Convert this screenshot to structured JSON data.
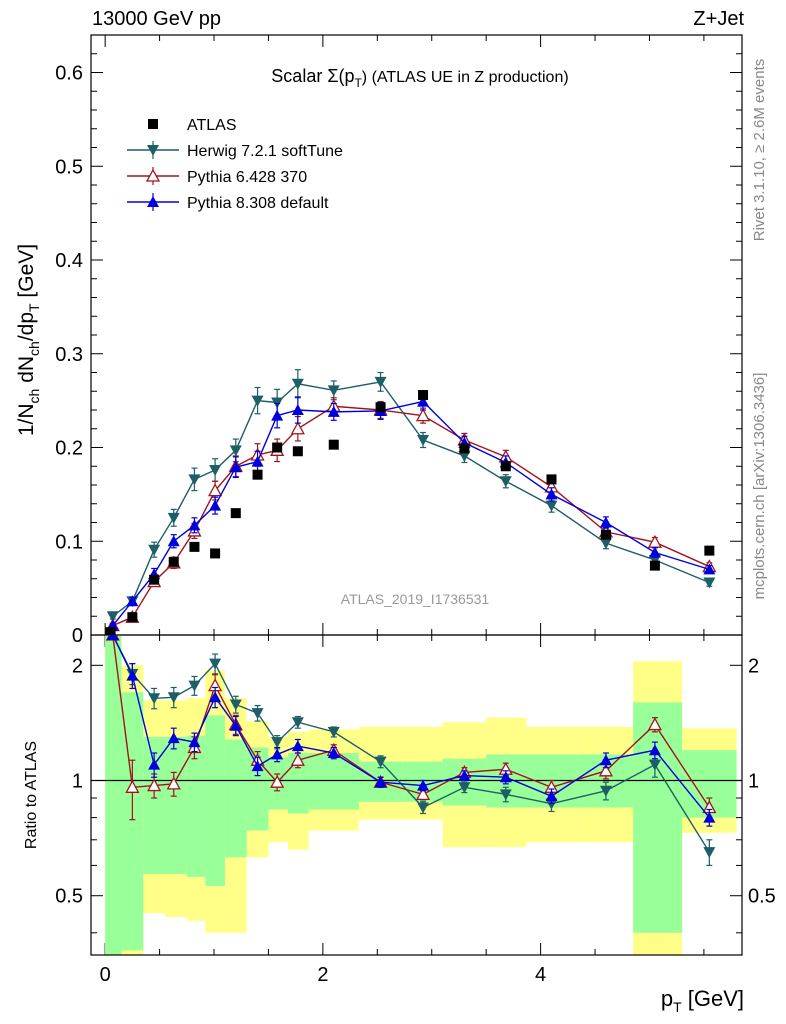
{
  "header": {
    "left": "13000 GeV pp",
    "right": "Z+Jet"
  },
  "side_labels": {
    "top": "Rivet 3.1.10, ≥ 2.6M events",
    "bottom": "mcplots.cern.ch [arXiv:1306.3436]"
  },
  "plot_title": {
    "prefix": "Scalar Σ(p",
    "sub": "T",
    "suffix": ") (ATLAS UE in Z production)"
  },
  "analysis_id": "ATLAS_2019_I1736531",
  "axes": {
    "ylabel_main": "1/N_ch dN_ch/dp_T [GeV]",
    "ylabel_ratio": "Ratio to ATLAS",
    "xlabel": "p_T [GeV]",
    "x_ticks": [
      "0",
      "2",
      "4"
    ],
    "y_ticks_main": [
      "0",
      "0.1",
      "0.2",
      "0.3",
      "0.4",
      "0.5",
      "0.6"
    ],
    "y_ticks_ratio": [
      "0.5",
      "1",
      "2"
    ]
  },
  "legend": [
    {
      "label": "ATLAS",
      "color": "#000000",
      "marker": "square"
    },
    {
      "label": "Herwig 7.2.1 softTune",
      "color": "#1c5f66",
      "marker": "triangle-down"
    },
    {
      "label": "Pythia 6.428 370",
      "color": "#a0141e",
      "marker": "triangle-open"
    },
    {
      "label": "Pythia 8.308 default",
      "color": "#0000dd",
      "marker": "triangle-up"
    }
  ],
  "chart_data": [
    {
      "type": "scatter",
      "panel": "main",
      "xlabel": "p_T [GeV]",
      "ylabel": "1/N_ch dN_ch/dp_T [GeV]",
      "xlim": [
        -0.13,
        5.85
      ],
      "ylim": [
        0,
        0.64
      ],
      "series": [
        {
          "name": "ATLAS",
          "color": "#000000",
          "x": [
            0.05,
            0.25,
            0.45,
            0.63,
            0.82,
            1.01,
            1.2,
            1.4,
            1.58,
            1.77,
            2.1,
            2.53,
            2.92,
            3.3,
            3.68,
            4.1,
            4.6,
            5.05,
            5.55
          ],
          "y": [
            0.003,
            0.019,
            0.059,
            0.078,
            0.094,
            0.087,
            0.13,
            0.171,
            0.2,
            0.196,
            0.203,
            0.243,
            0.256,
            0.199,
            0.18,
            0.166,
            0.107,
            0.074,
            0.09
          ]
        },
        {
          "name": "Herwig 7.2.1 softTune",
          "color": "#1c5f66",
          "x": [
            0.07,
            0.25,
            0.45,
            0.63,
            0.82,
            1.01,
            1.2,
            1.4,
            1.58,
            1.77,
            2.1,
            2.53,
            2.92,
            3.3,
            3.68,
            4.1,
            4.6,
            5.05,
            5.55
          ],
          "y": [
            0.02,
            0.036,
            0.091,
            0.125,
            0.166,
            0.176,
            0.197,
            0.25,
            0.248,
            0.268,
            0.261,
            0.27,
            0.208,
            0.191,
            0.164,
            0.138,
            0.098,
            0.08,
            0.056
          ],
          "err": [
            0.003,
            0.004,
            0.008,
            0.009,
            0.012,
            0.012,
            0.012,
            0.014,
            0.014,
            0.015,
            0.01,
            0.01,
            0.008,
            0.007,
            0.007,
            0.007,
            0.006,
            0.006,
            0.004
          ]
        },
        {
          "name": "Pythia 6.428 370",
          "color": "#a0141e",
          "x": [
            0.07,
            0.25,
            0.45,
            0.63,
            0.82,
            1.01,
            1.2,
            1.4,
            1.58,
            1.77,
            2.1,
            2.53,
            2.92,
            3.3,
            3.68,
            4.1,
            4.6,
            5.05,
            5.55
          ],
          "y": [
            0.01,
            0.019,
            0.057,
            0.077,
            0.111,
            0.154,
            0.18,
            0.192,
            0.197,
            0.22,
            0.244,
            0.24,
            0.234,
            0.208,
            0.19,
            0.158,
            0.11,
            0.099,
            0.073
          ],
          "err": [
            0.002,
            0.003,
            0.005,
            0.006,
            0.008,
            0.01,
            0.011,
            0.012,
            0.012,
            0.013,
            0.009,
            0.009,
            0.008,
            0.007,
            0.007,
            0.007,
            0.006,
            0.005,
            0.004
          ]
        },
        {
          "name": "Pythia 8.308 default",
          "color": "#0000dd",
          "x": [
            0.07,
            0.25,
            0.45,
            0.63,
            0.82,
            1.01,
            1.2,
            1.4,
            1.58,
            1.77,
            2.1,
            2.53,
            2.92,
            3.3,
            3.68,
            4.1,
            4.6,
            5.05,
            5.55
          ],
          "y": [
            0.01,
            0.036,
            0.065,
            0.1,
            0.117,
            0.138,
            0.179,
            0.185,
            0.234,
            0.24,
            0.238,
            0.239,
            0.249,
            0.205,
            0.184,
            0.15,
            0.12,
            0.088,
            0.07
          ],
          "err": [
            0.002,
            0.004,
            0.006,
            0.007,
            0.008,
            0.009,
            0.011,
            0.011,
            0.013,
            0.014,
            0.009,
            0.009,
            0.009,
            0.007,
            0.007,
            0.007,
            0.006,
            0.005,
            0.004
          ]
        }
      ]
    },
    {
      "type": "scatter",
      "panel": "ratio",
      "ylabel": "Ratio to ATLAS",
      "yscale": "log",
      "xlim": [
        -0.13,
        5.85
      ],
      "ylim": [
        0.35,
        2.4
      ],
      "bands": {
        "bin_edges": [
          0,
          0.15,
          0.35,
          0.55,
          0.75,
          0.92,
          1.1,
          1.3,
          1.5,
          1.68,
          1.87,
          2.33,
          2.73,
          3.1,
          3.5,
          3.87,
          4.35,
          4.85,
          5.3,
          5.8
        ],
        "green_low": [
          0.35,
          0.36,
          0.57,
          0.57,
          0.56,
          0.53,
          0.63,
          0.74,
          0.84,
          0.82,
          0.84,
          0.88,
          0.88,
          0.86,
          0.85,
          0.85,
          0.85,
          0.4,
          0.8
        ],
        "green_high": [
          2.4,
          1.7,
          1.3,
          1.3,
          1.31,
          1.48,
          1.28,
          1.22,
          1.15,
          1.18,
          1.18,
          1.12,
          1.12,
          1.14,
          1.17,
          1.17,
          1.17,
          1.6,
          1.2
        ],
        "yellow_low": [
          0.35,
          0.35,
          0.45,
          0.44,
          0.43,
          0.4,
          0.4,
          0.63,
          0.69,
          0.66,
          0.74,
          0.79,
          0.79,
          0.67,
          0.67,
          0.69,
          0.69,
          0.35,
          0.73
        ],
        "yellow_high": [
          2.4,
          2.0,
          1.62,
          1.62,
          1.64,
          1.94,
          1.64,
          1.43,
          1.3,
          1.34,
          1.36,
          1.38,
          1.38,
          1.42,
          1.46,
          1.38,
          1.38,
          2.05,
          1.37
        ]
      },
      "series": [
        {
          "name": "Herwig 7.2.1 softTune",
          "color": "#1c5f66",
          "x": [
            0.07,
            0.25,
            0.45,
            0.63,
            0.82,
            1.01,
            1.2,
            1.4,
            1.58,
            1.77,
            2.1,
            2.53,
            2.92,
            3.3,
            3.68,
            4.1,
            4.6,
            5.05,
            5.55
          ],
          "y": [
            2.4,
            1.9,
            1.64,
            1.65,
            1.77,
            2.02,
            1.58,
            1.5,
            1.26,
            1.42,
            1.34,
            1.12,
            0.85,
            0.96,
            0.92,
            0.87,
            0.94,
            1.1,
            0.65
          ],
          "err": [
            0,
            0.12,
            0.1,
            0.1,
            0.1,
            0.12,
            0.08,
            0.07,
            0.05,
            0.05,
            0.04,
            0.04,
            0.03,
            0.03,
            0.04,
            0.04,
            0.05,
            0.08,
            0.05
          ]
        },
        {
          "name": "Pythia 6.428 370",
          "color": "#a0141e",
          "x": [
            0.07,
            0.25,
            0.45,
            0.63,
            0.82,
            1.01,
            1.2,
            1.4,
            1.58,
            1.77,
            2.1,
            2.53,
            2.92,
            3.3,
            3.68,
            4.1,
            4.6,
            5.05,
            5.55
          ],
          "y": [
            2.4,
            0.96,
            0.97,
            0.98,
            1.22,
            1.77,
            1.4,
            1.13,
            0.99,
            1.13,
            1.2,
            0.99,
            0.92,
            1.05,
            1.07,
            0.96,
            1.06,
            1.4,
            0.85
          ],
          "err": [
            0,
            0.17,
            0.07,
            0.07,
            0.08,
            0.12,
            0.08,
            0.06,
            0.05,
            0.05,
            0.04,
            0.03,
            0.03,
            0.03,
            0.04,
            0.04,
            0.05,
            0.06,
            0.05
          ]
        },
        {
          "name": "Pythia 8.308 default",
          "color": "#0000dd",
          "x": [
            0.07,
            0.25,
            0.45,
            0.63,
            0.82,
            1.01,
            1.2,
            1.4,
            1.58,
            1.77,
            2.1,
            2.53,
            2.92,
            3.3,
            3.68,
            4.1,
            4.6,
            5.05,
            5.55
          ],
          "y": [
            2.4,
            1.88,
            1.1,
            1.29,
            1.26,
            1.65,
            1.39,
            1.09,
            1.17,
            1.23,
            1.18,
            0.99,
            0.97,
            1.03,
            1.02,
            0.91,
            1.13,
            1.2,
            0.8
          ],
          "err": [
            0,
            0.14,
            0.08,
            0.08,
            0.07,
            0.1,
            0.08,
            0.06,
            0.05,
            0.05,
            0.04,
            0.03,
            0.03,
            0.03,
            0.04,
            0.04,
            0.05,
            0.06,
            0.04
          ]
        }
      ]
    }
  ]
}
